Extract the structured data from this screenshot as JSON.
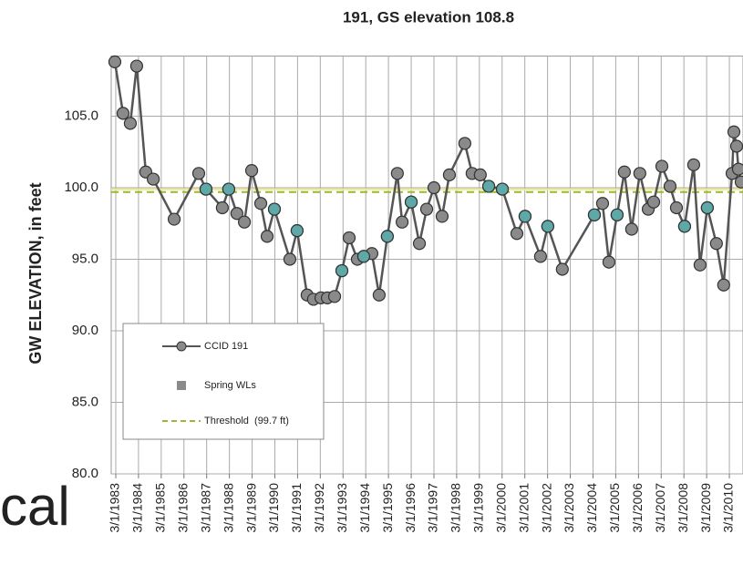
{
  "chart_data": {
    "type": "line",
    "title": "191, GS elevation 108.8",
    "y_label": "GW ELEVATION, in feet",
    "xlim": [
      1982.97,
      2010.77
    ],
    "ylim": [
      80,
      109.2
    ],
    "grid": true,
    "legend": "lower left",
    "yticks": [
      {
        "value": 80,
        "label": "80.0"
      },
      {
        "value": 85,
        "label": "85.0"
      },
      {
        "value": 90,
        "label": "90.0"
      },
      {
        "value": 95,
        "label": "95.0"
      },
      {
        "value": 100,
        "label": "100.0"
      },
      {
        "value": 105,
        "label": "105.0"
      }
    ],
    "xticks": [
      {
        "value": 1983.17,
        "label": "3/1/1983"
      },
      {
        "value": 1984.17,
        "label": "3/1/1984"
      },
      {
        "value": 1985.17,
        "label": "3/1/1985"
      },
      {
        "value": 1986.17,
        "label": "3/1/1986"
      },
      {
        "value": 1987.17,
        "label": "3/1/1987"
      },
      {
        "value": 1988.17,
        "label": "3/1/1988"
      },
      {
        "value": 1989.17,
        "label": "3/1/1989"
      },
      {
        "value": 1990.17,
        "label": "3/1/1990"
      },
      {
        "value": 1991.17,
        "label": "3/1/1991"
      },
      {
        "value": 1992.17,
        "label": "3/1/1992"
      },
      {
        "value": 1993.17,
        "label": "3/1/1993"
      },
      {
        "value": 1994.17,
        "label": "3/1/1994"
      },
      {
        "value": 1995.17,
        "label": "3/1/1995"
      },
      {
        "value": 1996.17,
        "label": "3/1/1996"
      },
      {
        "value": 1997.17,
        "label": "3/1/1997"
      },
      {
        "value": 1998.17,
        "label": "3/1/1998"
      },
      {
        "value": 1999.17,
        "label": "3/1/1999"
      },
      {
        "value": 2000.17,
        "label": "3/1/2000"
      },
      {
        "value": 2001.17,
        "label": "3/1/2001"
      },
      {
        "value": 2002.17,
        "label": "3/1/2002"
      },
      {
        "value": 2003.17,
        "label": "3/1/2003"
      },
      {
        "value": 2004.17,
        "label": "3/1/2004"
      },
      {
        "value": 2005.17,
        "label": "3/1/2005"
      },
      {
        "value": 2006.17,
        "label": "3/1/2006"
      },
      {
        "value": 2007.17,
        "label": "3/1/2007"
      },
      {
        "value": 2008.17,
        "label": "3/1/2008"
      },
      {
        "value": 2009.17,
        "label": "3/1/2009"
      },
      {
        "value": 2010.17,
        "label": "3/1/2010"
      }
    ],
    "series": [
      {
        "name": "CCID 191",
        "color": "#8a8a8a",
        "line_color": "#555555",
        "x": [
          1983.13,
          1983.49,
          1983.81,
          1984.09,
          1984.49,
          1984.82,
          1985.74,
          1986.82,
          1987.14,
          1987.86,
          1988.14,
          1988.5,
          1988.83,
          1989.15,
          1989.55,
          1989.83,
          1990.15,
          1990.83,
          1991.15,
          1991.59,
          1991.87,
          1992.2,
          1992.48,
          1992.8,
          1993.12,
          1993.44,
          1993.8,
          1994.08,
          1994.44,
          1994.76,
          1995.12,
          1995.56,
          1995.77,
          1996.17,
          1996.53,
          1996.85,
          1997.17,
          1997.53,
          1997.85,
          1998.53,
          1998.85,
          1999.21,
          1999.58,
          2000.18,
          2000.82,
          2001.18,
          2001.86,
          2002.18,
          2002.82,
          2004.23,
          2004.59,
          2004.87,
          2005.23,
          2005.55,
          2005.87,
          2006.23,
          2006.6,
          2006.84,
          2007.2,
          2007.56,
          2007.84,
          2008.2,
          2008.6,
          2008.88,
          2009.2,
          2009.6,
          2009.92,
          2010.29,
          2010.37,
          2010.49,
          2010.57,
          2010.69
        ],
        "values": [
          108.8,
          105.2,
          104.5,
          108.5,
          101.1,
          100.6,
          97.8,
          101.0,
          99.9,
          98.6,
          99.9,
          98.2,
          97.6,
          101.2,
          98.9,
          96.6,
          98.5,
          95.0,
          97.0,
          92.5,
          92.2,
          92.3,
          92.3,
          92.4,
          94.2,
          96.5,
          95.0,
          95.2,
          95.4,
          92.5,
          96.6,
          101.0,
          97.6,
          99.0,
          96.1,
          98.5,
          100.0,
          98.0,
          100.9,
          103.1,
          101.0,
          100.9,
          100.1,
          99.9,
          96.8,
          98.0,
          95.2,
          97.3,
          94.3,
          98.1,
          98.9,
          94.8,
          98.1,
          101.1,
          97.1,
          101.0,
          98.5,
          99.0,
          101.5,
          100.1,
          98.6,
          97.3,
          101.6,
          94.6,
          98.6,
          96.1,
          93.2,
          101.0,
          103.9,
          102.9,
          101.3,
          100.4
        ]
      },
      {
        "name": "Spring WLs",
        "color": "#5fa8a8",
        "legend_color": "#8a8a8a",
        "x": [
          1987.14,
          1988.14,
          1990.15,
          1991.15,
          1993.12,
          1994.08,
          1995.12,
          1996.17,
          1999.58,
          2000.18,
          2001.18,
          2002.18,
          2004.23,
          2005.23,
          2008.2,
          2009.2
        ],
        "values": [
          99.9,
          99.9,
          98.5,
          97.0,
          94.2,
          95.2,
          96.6,
          99.0,
          100.1,
          99.9,
          98.0,
          97.3,
          98.1,
          98.1,
          97.3,
          98.6
        ]
      }
    ],
    "threshold": {
      "label": "Threshold  (99.7 ft)",
      "value": 99.7,
      "color": "#9ab833"
    }
  },
  "overlay_text": "cal"
}
